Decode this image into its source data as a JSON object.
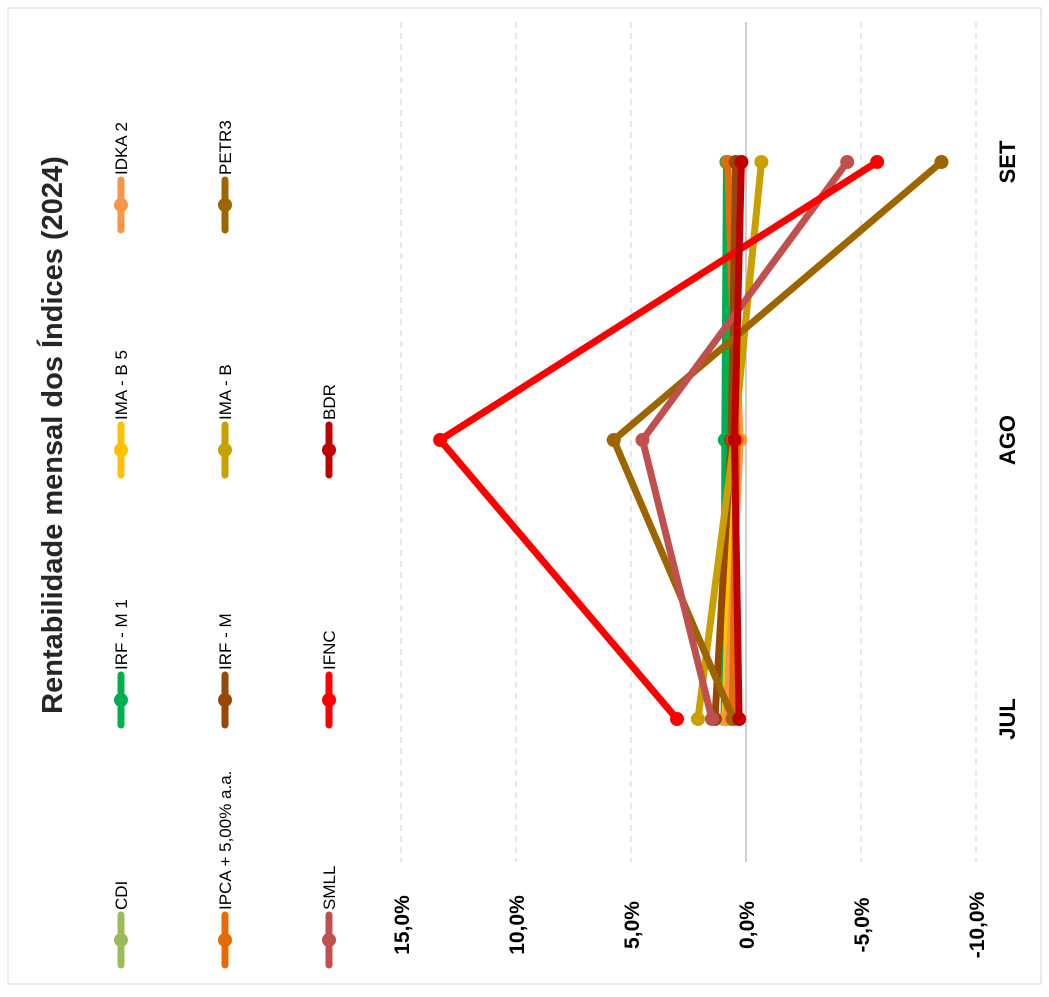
{
  "chart_data": {
    "type": "line",
    "title": "Rentabilidade mensal dos Índices (2024)",
    "categories": [
      "JUL",
      "AGO",
      "SET"
    ],
    "xlabel": "",
    "ylabel": "",
    "ylim": [
      -10,
      15
    ],
    "yticks": [
      "-10,0%",
      "-5,0%",
      "0,0%",
      "5,0%",
      "10,0%",
      "15,0%"
    ],
    "grid": true,
    "legend_position": "top",
    "series": [
      {
        "name": "CDI",
        "color": "#9bbb59",
        "values": [
          0.91,
          0.87,
          0.84
        ]
      },
      {
        "name": "IRF - M 1",
        "color": "#00b050",
        "values": [
          0.95,
          0.92,
          0.85
        ]
      },
      {
        "name": "IMA - B 5",
        "color": "#ffc000",
        "values": [
          0.91,
          0.59,
          0.2
        ]
      },
      {
        "name": "IDKA 2",
        "color": "#f79646",
        "values": [
          0.85,
          0.25,
          0.79
        ]
      },
      {
        "name": "IPCA + 5,00% a.a.",
        "color": "#e36c09",
        "values": [
          0.6,
          0.4,
          0.8
        ]
      },
      {
        "name": "IRF - M",
        "color": "#974706",
        "values": [
          1.35,
          0.65,
          0.45
        ]
      },
      {
        "name": "IMA - B",
        "color": "#c9a000",
        "values": [
          2.09,
          0.52,
          -0.67
        ]
      },
      {
        "name": "PETR3",
        "color": "#9c6500",
        "values": [
          0.55,
          5.75,
          -8.5
        ]
      },
      {
        "name": "SMLL",
        "color": "#c0504d",
        "values": [
          1.48,
          4.5,
          -4.4
        ]
      },
      {
        "name": "IFNC",
        "color": "#ff0000",
        "values": [
          3.0,
          13.3,
          -5.7
        ]
      },
      {
        "name": "BDR",
        "color": "#c00000",
        "values": [
          0.3,
          0.5,
          0.2
        ]
      }
    ]
  }
}
